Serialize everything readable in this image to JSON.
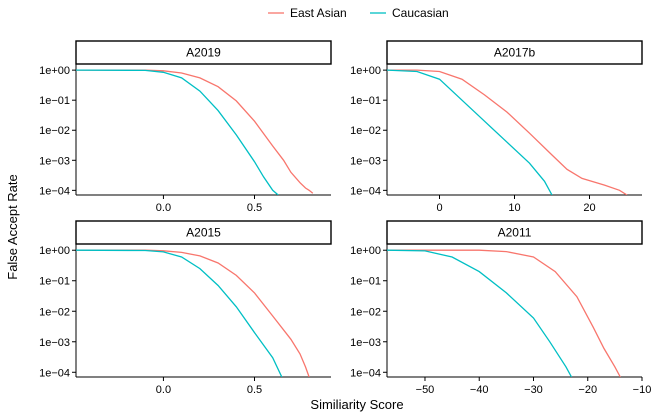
{
  "chart_data": {
    "type": "line",
    "xlabel": "Similiarity Score",
    "ylabel": "False Accept Rate",
    "y_scale": "log",
    "ylim": [
      7e-05,
      1.6
    ],
    "y_ticks": [
      1,
      0.1,
      0.01,
      0.001,
      0.0001
    ],
    "y_tick_labels": [
      "1e+00",
      "1e−01",
      "1e−02",
      "1e−03",
      "1e−04"
    ],
    "grid": false,
    "legend": {
      "position": "top",
      "entries": [
        {
          "label": "East Asian",
          "color": "#F8766D"
        },
        {
          "label": "Caucasian",
          "color": "#00BFC4"
        }
      ]
    },
    "panels": [
      {
        "title": "A2019",
        "xlim": [
          -0.48,
          0.92
        ],
        "x_ticks": [
          0.0,
          0.5
        ],
        "x_tick_labels": [
          "0.0",
          "0.5"
        ],
        "series": [
          {
            "name": "East Asian",
            "color": "#F8766D",
            "points": [
              [
                -0.48,
                1
              ],
              [
                -0.1,
                1
              ],
              [
                0,
                0.95
              ],
              [
                0.1,
                0.8
              ],
              [
                0.2,
                0.55
              ],
              [
                0.3,
                0.28
              ],
              [
                0.4,
                0.095
              ],
              [
                0.5,
                0.02
              ],
              [
                0.6,
                0.003
              ],
              [
                0.66,
                0.001
              ],
              [
                0.7,
                0.0004
              ],
              [
                0.75,
                0.00018
              ],
              [
                0.78,
                0.00012
              ],
              [
                0.8,
                0.0001
              ],
              [
                0.82,
                8e-05
              ]
            ]
          },
          {
            "name": "Caucasian",
            "color": "#00BFC4",
            "points": [
              [
                -0.48,
                1
              ],
              [
                -0.1,
                0.98
              ],
              [
                0,
                0.85
              ],
              [
                0.1,
                0.55
              ],
              [
                0.2,
                0.2
              ],
              [
                0.3,
                0.045
              ],
              [
                0.4,
                0.007
              ],
              [
                0.5,
                0.0009
              ],
              [
                0.55,
                0.00028
              ],
              [
                0.6,
                0.0001
              ],
              [
                0.63,
                7e-05
              ]
            ]
          }
        ]
      },
      {
        "title": "A2017b",
        "xlim": [
          -7,
          27
        ],
        "x_ticks": [
          0,
          10,
          20
        ],
        "x_tick_labels": [
          "0",
          "10",
          "20"
        ],
        "series": [
          {
            "name": "East Asian",
            "color": "#F8766D",
            "points": [
              [
                -7,
                1
              ],
              [
                -3,
                1
              ],
              [
                0,
                0.9
              ],
              [
                3,
                0.5
              ],
              [
                6,
                0.15
              ],
              [
                9,
                0.04
              ],
              [
                12,
                0.008
              ],
              [
                15,
                0.0015
              ],
              [
                17,
                0.0005
              ],
              [
                19,
                0.00025
              ],
              [
                22,
                0.00015
              ],
              [
                24,
                0.0001
              ],
              [
                25,
                7e-05
              ]
            ]
          },
          {
            "name": "Caucasian",
            "color": "#00BFC4",
            "points": [
              [
                -7,
                1
              ],
              [
                -3,
                0.9
              ],
              [
                0,
                0.5
              ],
              [
                3,
                0.1
              ],
              [
                6,
                0.02
              ],
              [
                9,
                0.004
              ],
              [
                12,
                0.0008
              ],
              [
                14,
                0.0002
              ],
              [
                15,
                7e-05
              ]
            ]
          }
        ]
      },
      {
        "title": "A2015",
        "xlim": [
          -0.48,
          0.92
        ],
        "x_ticks": [
          0.0,
          0.5
        ],
        "x_tick_labels": [
          "0.0",
          "0.5"
        ],
        "series": [
          {
            "name": "East Asian",
            "color": "#F8766D",
            "points": [
              [
                -0.48,
                1
              ],
              [
                -0.1,
                1
              ],
              [
                0,
                0.96
              ],
              [
                0.1,
                0.85
              ],
              [
                0.2,
                0.65
              ],
              [
                0.3,
                0.38
              ],
              [
                0.4,
                0.15
              ],
              [
                0.5,
                0.04
              ],
              [
                0.6,
                0.007
              ],
              [
                0.7,
                0.0012
              ],
              [
                0.75,
                0.0004
              ],
              [
                0.78,
                0.00015
              ],
              [
                0.8,
                7e-05
              ]
            ]
          },
          {
            "name": "Caucasian",
            "color": "#00BFC4",
            "points": [
              [
                -0.48,
                1
              ],
              [
                -0.1,
                0.98
              ],
              [
                0,
                0.88
              ],
              [
                0.1,
                0.6
              ],
              [
                0.2,
                0.25
              ],
              [
                0.3,
                0.07
              ],
              [
                0.4,
                0.014
              ],
              [
                0.5,
                0.002
              ],
              [
                0.6,
                0.0003
              ],
              [
                0.65,
                7e-05
              ]
            ]
          }
        ]
      },
      {
        "title": "A2011",
        "xlim": [
          -57,
          -10
        ],
        "x_ticks": [
          -50,
          -40,
          -30,
          -20,
          -10
        ],
        "x_tick_labels": [
          "−50",
          "−40",
          "−30",
          "−20",
          "−10"
        ],
        "series": [
          {
            "name": "East Asian",
            "color": "#F8766D",
            "points": [
              [
                -57,
                1
              ],
              [
                -40,
                1
              ],
              [
                -35,
                0.9
              ],
              [
                -30,
                0.6
              ],
              [
                -26,
                0.2
              ],
              [
                -22,
                0.03
              ],
              [
                -19,
                0.003
              ],
              [
                -17,
                0.0006
              ],
              [
                -15,
                0.00015
              ],
              [
                -14,
                7e-05
              ]
            ]
          },
          {
            "name": "Caucasian",
            "color": "#00BFC4",
            "points": [
              [
                -57,
                1
              ],
              [
                -50,
                0.95
              ],
              [
                -45,
                0.6
              ],
              [
                -40,
                0.2
              ],
              [
                -35,
                0.04
              ],
              [
                -30,
                0.006
              ],
              [
                -27,
                0.001
              ],
              [
                -24,
                0.00015
              ],
              [
                -23,
                7e-05
              ]
            ]
          }
        ]
      }
    ]
  }
}
